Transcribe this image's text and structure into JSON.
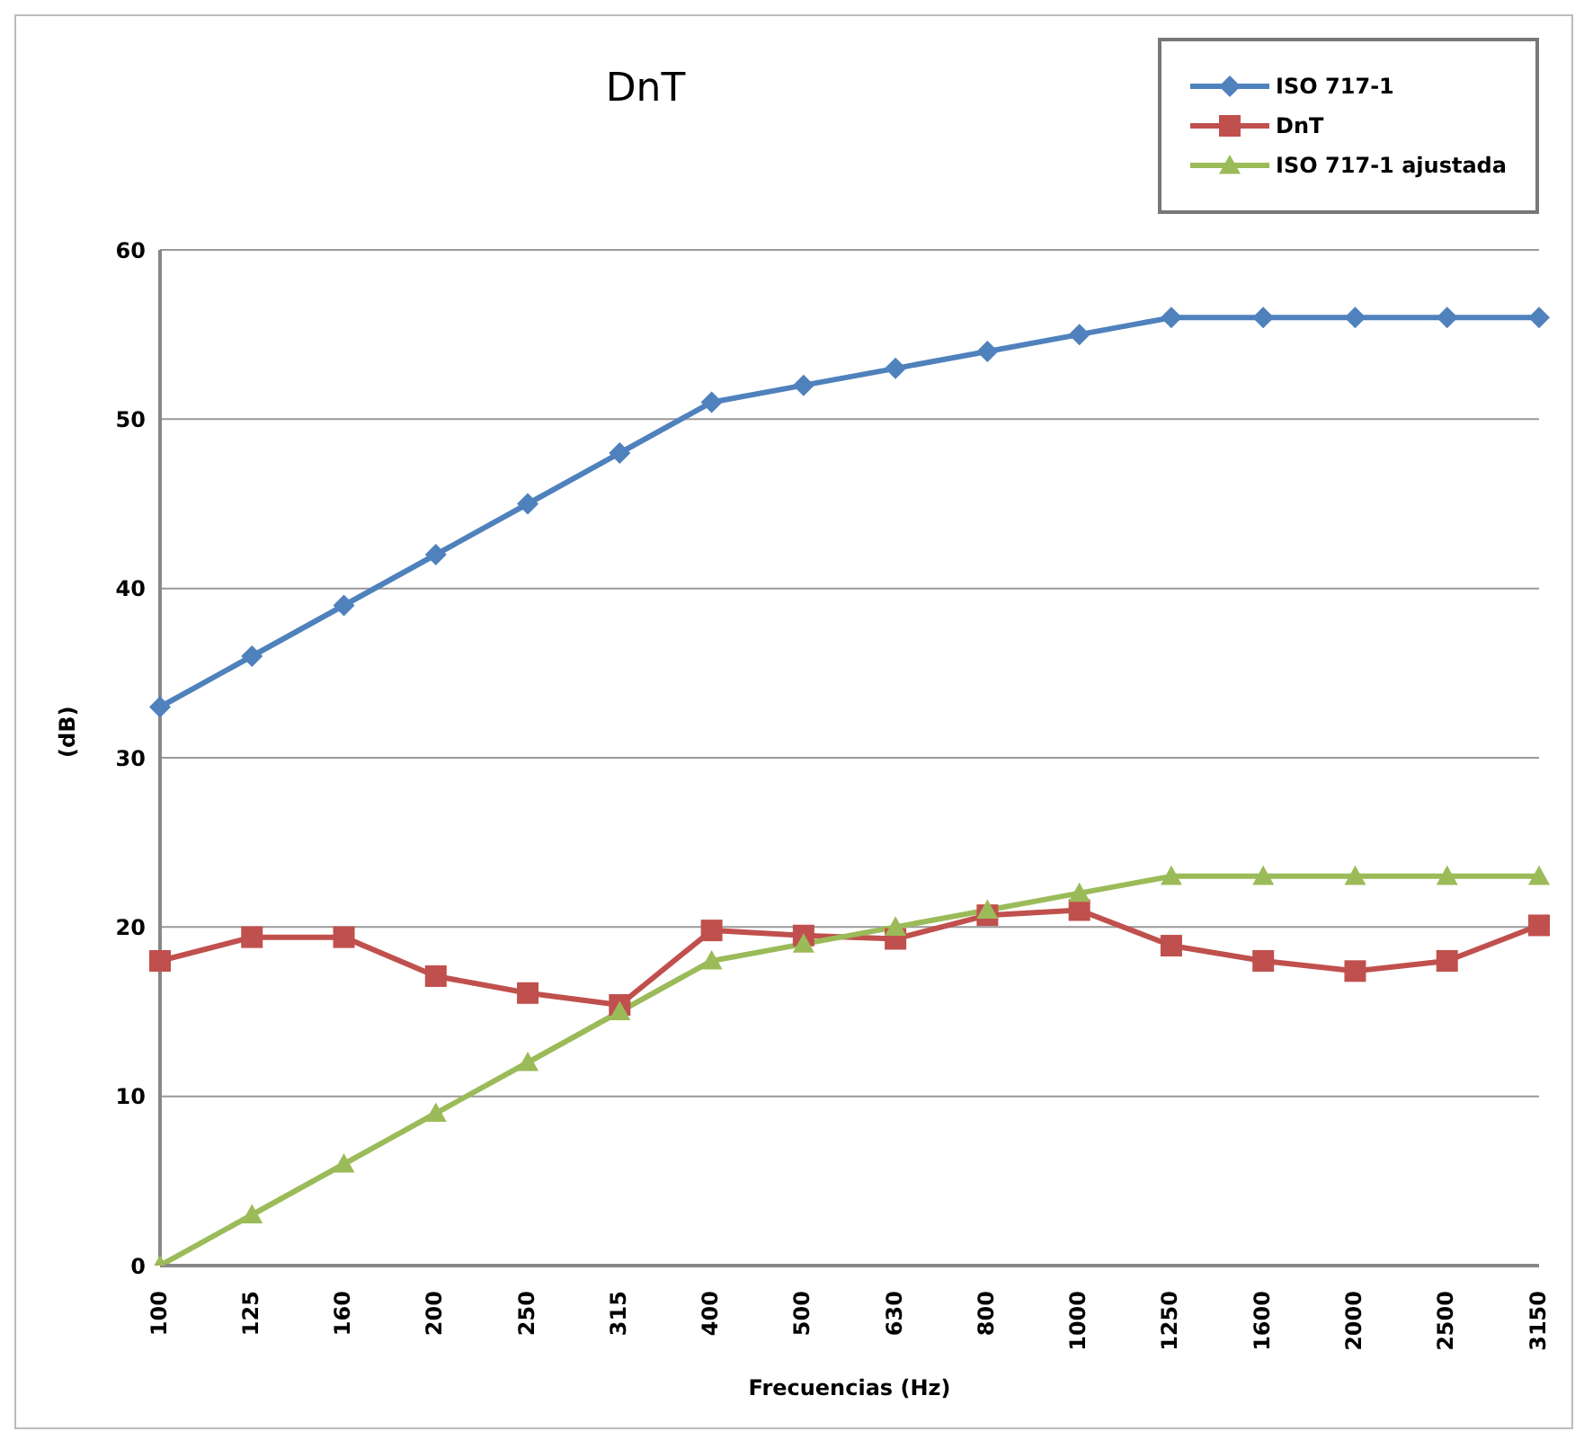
{
  "chart_data": {
    "type": "line",
    "title": "DnT",
    "xlabel": "Frecuencias (Hz)",
    "ylabel": "(dB)",
    "categories": [
      "100",
      "125",
      "160",
      "200",
      "250",
      "315",
      "400",
      "500",
      "630",
      "800",
      "1000",
      "1250",
      "1600",
      "2000",
      "2500",
      "3150"
    ],
    "series": [
      {
        "name": "ISO 717-1",
        "color": "#4f81bd",
        "marker": "diamond",
        "values": [
          33,
          36,
          39,
          42,
          45,
          48,
          51,
          52,
          53,
          54,
          55,
          56,
          56,
          56,
          56,
          56
        ]
      },
      {
        "name": "DnT",
        "color": "#c0504d",
        "marker": "square",
        "values": [
          18.0,
          19.4,
          19.4,
          17.1,
          16.1,
          15.4,
          19.8,
          19.5,
          19.3,
          20.7,
          21.0,
          18.9,
          18.0,
          17.4,
          18.0,
          20.1
        ]
      },
      {
        "name": "ISO 717-1 ajustada",
        "color": "#9bbb59",
        "marker": "triangle",
        "values": [
          0,
          3,
          6,
          9,
          12,
          15,
          18,
          19,
          20,
          21,
          22,
          23,
          23,
          23,
          23,
          23
        ]
      }
    ],
    "ylim": [
      0,
      60
    ],
    "yticks": [
      0,
      10,
      20,
      30,
      40,
      50,
      60
    ],
    "grid": "y",
    "legend": "top right",
    "line_style": "solid"
  }
}
